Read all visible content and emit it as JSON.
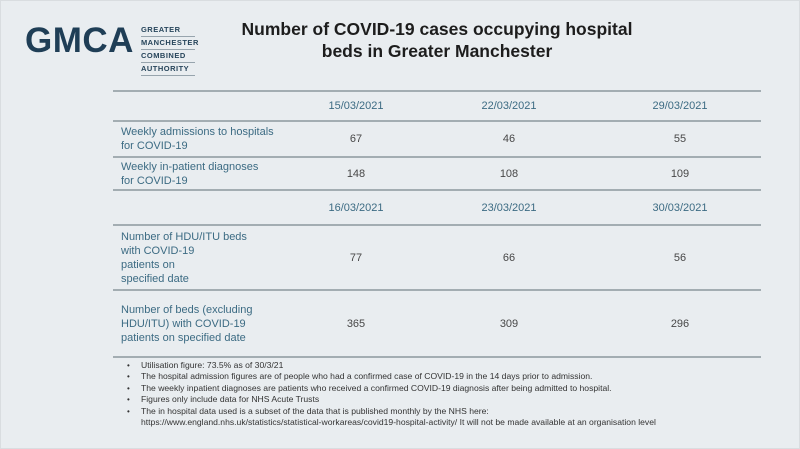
{
  "logo": {
    "acronym": "GMCA",
    "words": [
      "GREATER",
      "MANCHESTER",
      "COMBINED",
      "AUTHORITY"
    ]
  },
  "title": "Number of COVID-19 cases occupying hospital\nbeds in Greater Manchester",
  "colors": {
    "background": "#e9edf0",
    "logo_navy": "#1f3e56",
    "table_teal": "#3c6b83",
    "rule_gray": "#a3adb2",
    "value_gray": "#474747"
  },
  "table": {
    "sections": [
      {
        "dates": [
          "15/03/2021",
          "22/03/2021",
          "29/03/2021"
        ],
        "rows": [
          {
            "label": "Weekly admissions to hospitals\nfor COVID-19",
            "values": [
              "67",
              "46",
              "55"
            ]
          },
          {
            "label": "Weekly in-patient diagnoses\nfor COVID-19",
            "values": [
              "148",
              "108",
              "109"
            ]
          }
        ]
      },
      {
        "dates": [
          "16/03/2021",
          "23/03/2021",
          "30/03/2021"
        ],
        "rows": [
          {
            "label": "Number of HDU/ITU beds\nwith COVID-19\npatients on\nspecified date",
            "values": [
              "77",
              "66",
              "56"
            ]
          },
          {
            "label": "Number of beds (excluding\nHDU/ITU) with COVID-19\npatients on specified date",
            "values": [
              "365",
              "309",
              "296"
            ]
          }
        ]
      }
    ]
  },
  "notes": [
    "Utilisation figure:  73.5% as of 30/3/21",
    "The hospital admission figures are of people who had a confirmed case of COVID-19 in the 14 days prior to admission.",
    "The weekly inpatient diagnoses are patients who received a confirmed COVID-19 diagnosis after being admitted to hospital.",
    "Figures only include data for NHS Acute Trusts",
    "The in hospital data used is a subset of the data that is published monthly by the NHS here:\nhttps://www.england.nhs.uk/statistics/statistical-workareas/covid19-hospital-activity/ It will not be made available at an organisation level"
  ]
}
